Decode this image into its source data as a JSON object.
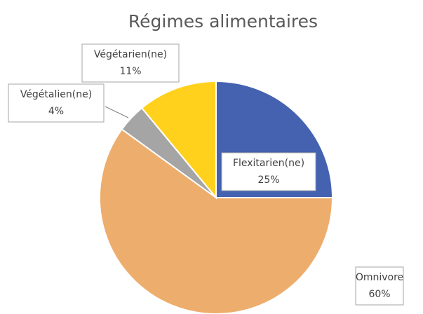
{
  "chart_data": {
    "type": "pie",
    "title": "Régimes alimentaires",
    "categories": [
      "Flexitarien(ne)",
      "Omnivore",
      "Végétalien(ne)",
      "Végétarien(ne)"
    ],
    "values": [
      25,
      60,
      4,
      11
    ],
    "value_labels": [
      "25%",
      "60%",
      "4%",
      "11%"
    ],
    "colors": [
      "#4462b0",
      "#edad6c",
      "#a5a5a5",
      "#ffd11c"
    ]
  }
}
